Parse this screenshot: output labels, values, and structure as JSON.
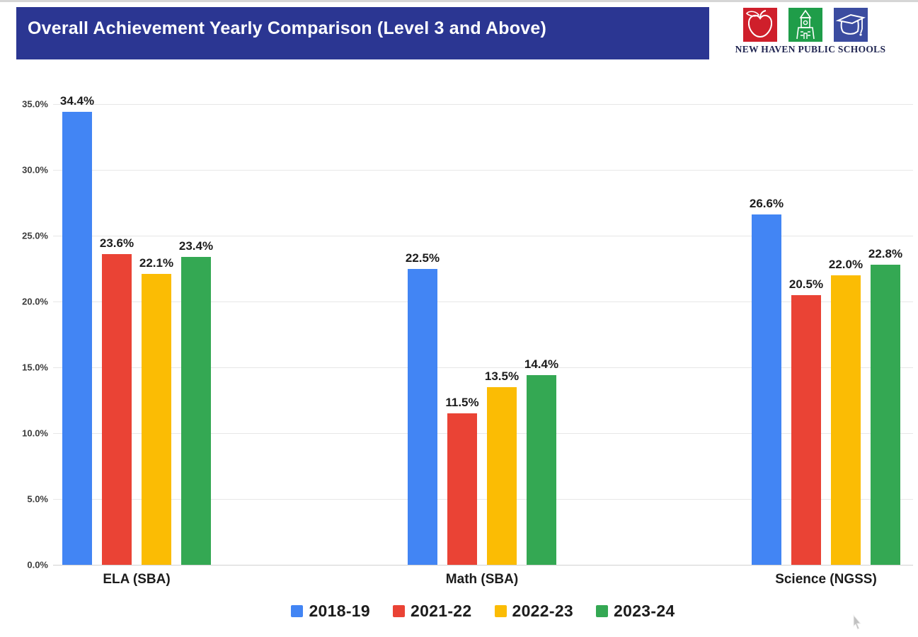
{
  "page": {
    "title_banner": "Overall Achievement Yearly Comparison (Level 3 and Above)",
    "logo": {
      "caption": "NEW HAVEN PUBLIC SCHOOLS",
      "squares": [
        {
          "icon": "apple-icon",
          "color": "#CF1F2B"
        },
        {
          "icon": "schoolhouse-icon",
          "color": "#1F9D49"
        },
        {
          "icon": "graduation-cap-icon",
          "color": "#3B4CA0"
        }
      ]
    }
  },
  "chart_data": {
    "type": "bar",
    "title": "Overall Achievement Yearly Comparison (Level 3 and Above)",
    "categories": [
      "ELA (SBA)",
      "Math (SBA)",
      "Science (NGSS)"
    ],
    "series": [
      {
        "name": "2018-19",
        "color": "#4285F4",
        "values": [
          34.4,
          22.5,
          26.6
        ]
      },
      {
        "name": "2021-22",
        "color": "#EA4335",
        "values": [
          23.6,
          11.5,
          20.5
        ]
      },
      {
        "name": "2022-23",
        "color": "#FBBC04",
        "values": [
          22.1,
          13.5,
          22.0
        ]
      },
      {
        "name": "2023-24",
        "color": "#34A853",
        "values": [
          23.4,
          14.4,
          22.8
        ]
      }
    ],
    "value_labels": [
      [
        "34.4%",
        "22.5%",
        "26.6%"
      ],
      [
        "23.6%",
        "11.5%",
        "20.5%"
      ],
      [
        "22.1%",
        "13.5%",
        "22.0%"
      ],
      [
        "23.4%",
        "14.4%",
        "22.8%"
      ]
    ],
    "y_ticks": [
      "35.0%",
      "30.0%",
      "25.0%",
      "20.0%",
      "15.0%",
      "10.0%",
      "5.0%",
      "0.0%"
    ],
    "ylim": [
      0,
      35
    ],
    "grid": true,
    "legend_position": "bottom",
    "xlabel": "",
    "ylabel": ""
  }
}
